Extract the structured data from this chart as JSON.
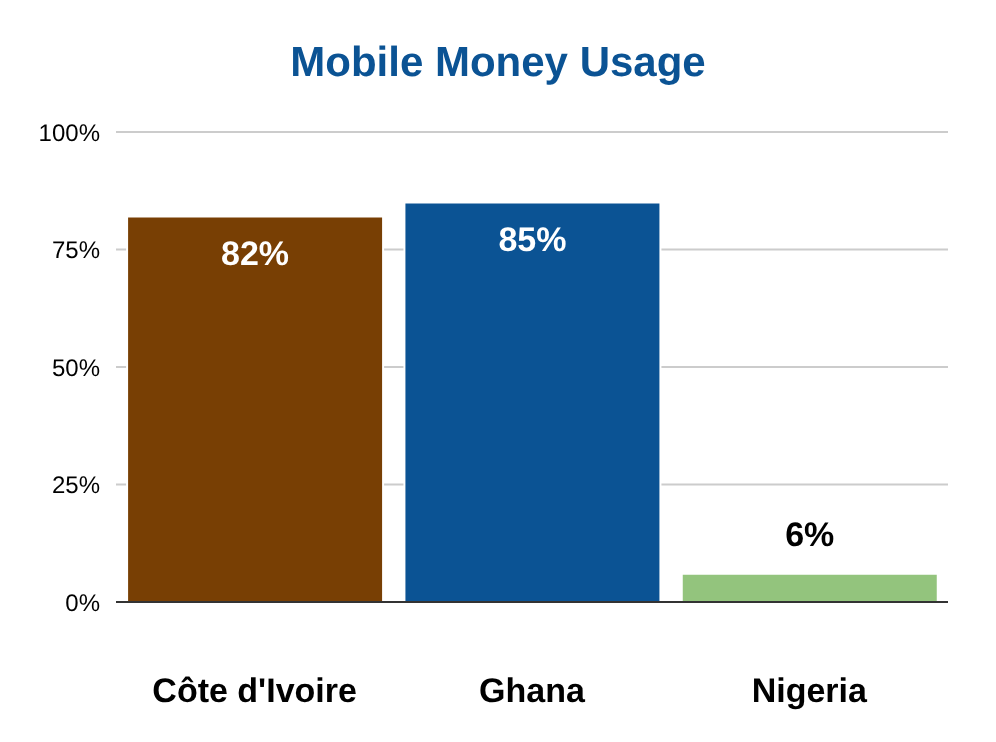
{
  "chart_data": {
    "type": "bar",
    "title": "Mobile Money Usage",
    "categories": [
      "Côte d'Ivoire",
      "Ghana",
      "Nigeria"
    ],
    "values": [
      82,
      85,
      6
    ],
    "colors": [
      "#783f04",
      "#0b5394",
      "#93c47d"
    ],
    "value_labels": [
      "82%",
      "85%",
      "6%"
    ],
    "ylim": [
      0,
      100
    ],
    "yticks": [
      {
        "value": 0,
        "label": "0%"
      },
      {
        "value": 25,
        "label": "25%"
      },
      {
        "value": 50,
        "label": "50%"
      },
      {
        "value": 75,
        "label": "75%"
      },
      {
        "value": 100,
        "label": "100%"
      }
    ],
    "grid": "y",
    "legend": false
  }
}
